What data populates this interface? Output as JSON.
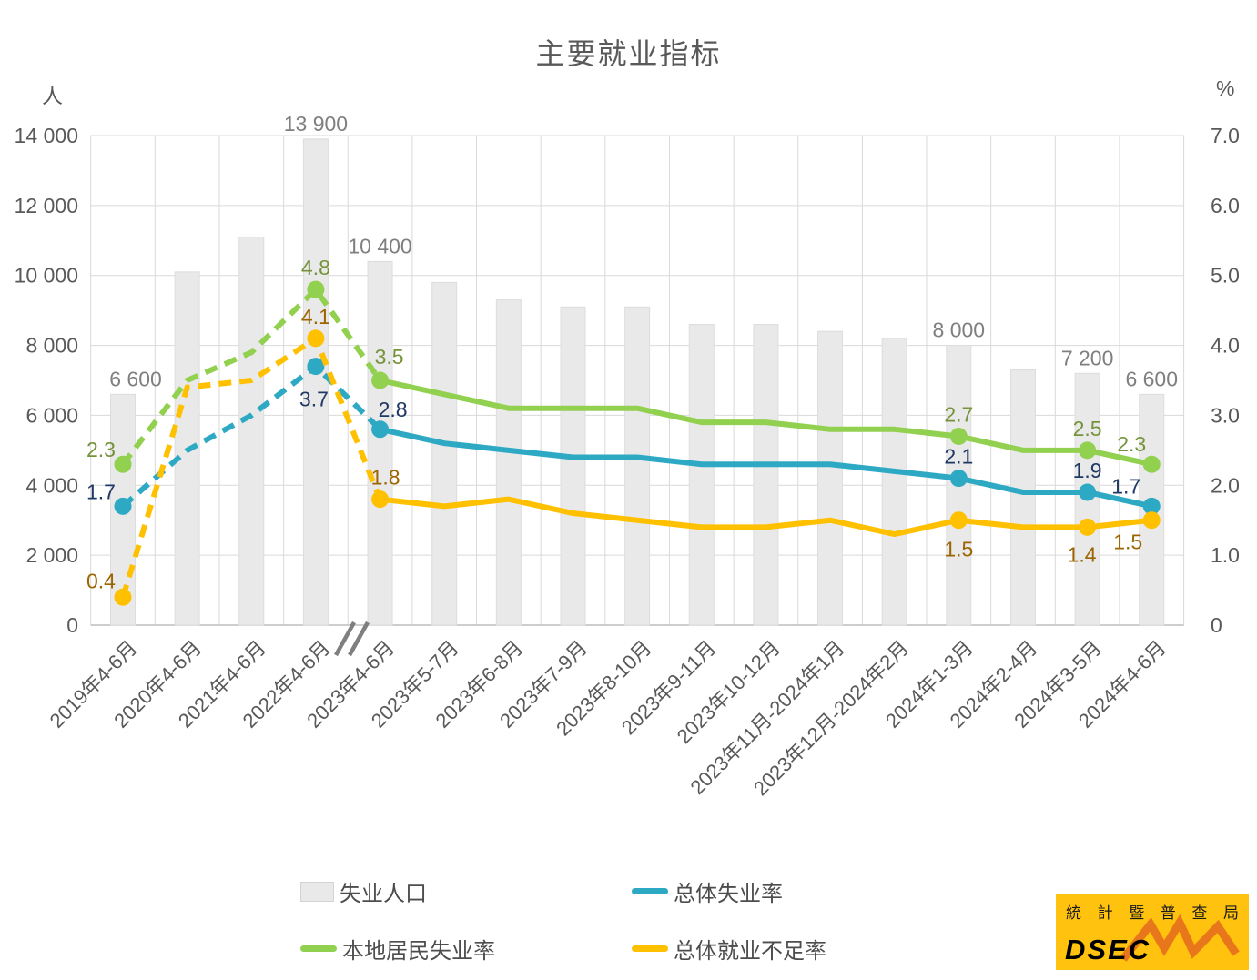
{
  "title": "主要就业指标",
  "left_axis": {
    "unit": "人",
    "ticks": [
      "14 000",
      "12 000",
      "10 000",
      "8 000",
      "6 000",
      "4 000",
      "2 000",
      "0"
    ]
  },
  "right_axis": {
    "unit": "%",
    "ticks": [
      "7.0",
      "6.0",
      "5.0",
      "4.0",
      "3.0",
      "2.0",
      "1.0",
      "0"
    ]
  },
  "legend": {
    "items": [
      {
        "label": "失业人口"
      },
      {
        "label": "总体失业率"
      },
      {
        "label": "本地居民失业率"
      },
      {
        "label": "总体就业不足率"
      }
    ]
  },
  "logo": {
    "top_text": [
      "統",
      "計",
      "暨",
      "普",
      "查",
      "局"
    ],
    "name": "DSEC"
  },
  "colors": {
    "bar": "#E9E9E9",
    "bar_border": "#DDDDDD",
    "blue": "#2EA9C4",
    "green": "#92D050",
    "yellow": "#FFC000",
    "grid": "#D9D9D9",
    "axis": "#BDBDBD",
    "tick_text": "#595959",
    "bar_label": "#7F7F7F",
    "blue_label": "#1F3864",
    "green_label": "#76933C",
    "yellow_label": "#9C6500",
    "logo_bg": "#FFC20E",
    "logo_zigzag": "#E8761B"
  },
  "chart_data": {
    "type": "bar+line combo",
    "title": "主要就业指标",
    "ylabel_left": "人",
    "ylabel_right": "%",
    "ylim_left": [
      0,
      14000
    ],
    "ylim_right": [
      0,
      7.0
    ],
    "grid": "both",
    "legend_position": "bottom",
    "axis_break": {
      "symbol": "//",
      "between_indices": [
        3,
        4
      ]
    },
    "dashed_until_index": 4,
    "labeled_points": [
      0,
      3,
      4,
      13,
      15,
      16
    ],
    "categories": [
      "2019年4-6月",
      "2020年4-6月",
      "2021年4-6月",
      "2022年4-6月",
      "2023年4-6月",
      "2023年5-7月",
      "2023年6-8月",
      "2023年7-9月",
      "2023年8-10月",
      "2023年9-11月",
      "2023年10-12月",
      "2023年11月-2024年1月",
      "2023年12月-2024年2月",
      "2024年1-3月",
      "2024年2-4月",
      "2024年3-5月",
      "2024年4-6月"
    ],
    "series": [
      {
        "name": "失业人口",
        "type": "bar",
        "axis": "left",
        "color": "#E9E9E9",
        "label_color": "#7F7F7F",
        "values": [
          6600,
          10100,
          11100,
          13900,
          10400,
          9800,
          9300,
          9100,
          9100,
          8600,
          8600,
          8400,
          8200,
          8000,
          7300,
          7200,
          6600
        ]
      },
      {
        "name": "总体失业率",
        "type": "line",
        "axis": "right",
        "color": "#2EA9C4",
        "label_color": "#1F3864",
        "values": [
          1.7,
          2.5,
          3.0,
          3.7,
          2.8,
          2.6,
          2.5,
          2.4,
          2.4,
          2.3,
          2.3,
          2.3,
          2.2,
          2.1,
          1.9,
          1.9,
          1.7
        ]
      },
      {
        "name": "本地居民失业率",
        "type": "line",
        "axis": "right",
        "color": "#92D050",
        "label_color": "#76933C",
        "values": [
          2.3,
          3.5,
          3.9,
          4.8,
          3.5,
          3.3,
          3.1,
          3.1,
          3.1,
          2.9,
          2.9,
          2.8,
          2.8,
          2.7,
          2.5,
          2.5,
          2.3
        ]
      },
      {
        "name": "总体就业不足率",
        "type": "line",
        "axis": "right",
        "color": "#FFC000",
        "label_color": "#9C6500",
        "values": [
          0.4,
          3.4,
          3.5,
          4.1,
          1.8,
          1.7,
          1.8,
          1.6,
          1.5,
          1.4,
          1.4,
          1.5,
          1.3,
          1.5,
          1.4,
          1.4,
          1.5
        ]
      }
    ]
  }
}
